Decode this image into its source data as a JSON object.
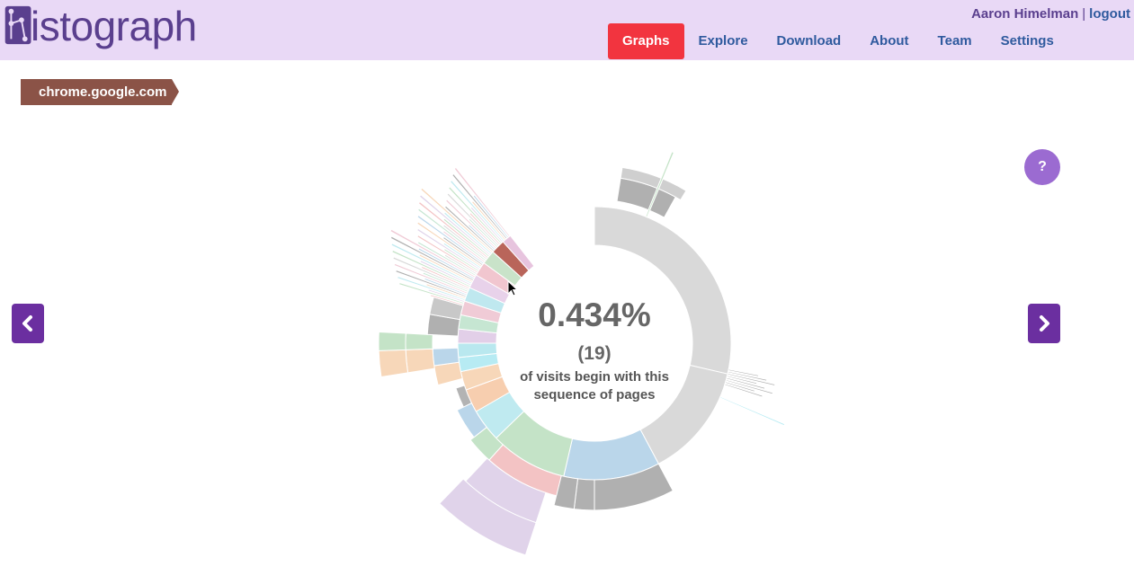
{
  "app": {
    "logo_text": "istograph",
    "user_name": "Aaron Himelman",
    "separator": "|",
    "logout_label": "logout"
  },
  "nav": {
    "tabs": [
      {
        "label": "Graphs",
        "active": true
      },
      {
        "label": "Explore",
        "active": false
      },
      {
        "label": "Download",
        "active": false
      },
      {
        "label": "About",
        "active": false
      },
      {
        "label": "Team",
        "active": false
      },
      {
        "label": "Settings",
        "active": false
      }
    ]
  },
  "breadcrumb": {
    "label": "chrome.google.com"
  },
  "help": {
    "label": "?"
  },
  "center": {
    "percentage": "0.434%",
    "count": "(19)",
    "description": "of visits begin with this sequence of pages"
  },
  "colors": {
    "topbar_bg": "#e9d9f6",
    "active_tab": "#f2343f",
    "link": "#2f5a9e",
    "breadcrumb": "#8b5347",
    "nav_arrow": "#6b2fa0",
    "help_button": "#9b6bd1"
  },
  "icons": {
    "prev": "chevron-left-icon",
    "next": "chevron-right-icon",
    "logo": "histograph-logo-icon",
    "cursor": "mouse-pointer-icon"
  }
}
